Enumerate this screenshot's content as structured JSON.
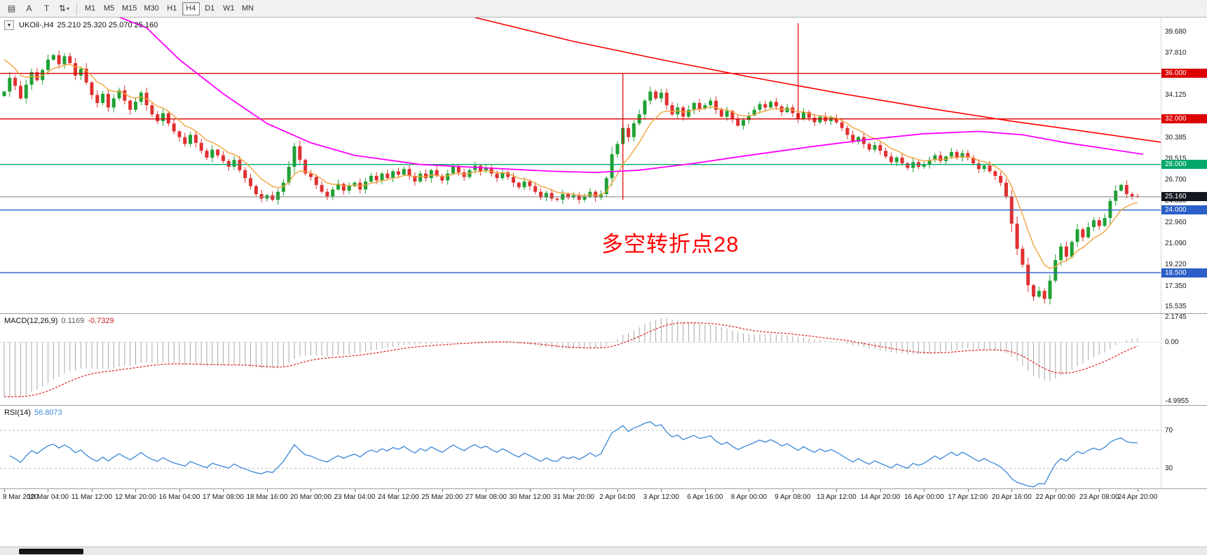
{
  "toolbar": {
    "left_icons": [
      {
        "name": "chart-window-icon",
        "glyph": "▤"
      },
      {
        "name": "letter-a-icon",
        "glyph": "A"
      },
      {
        "name": "text-tool-icon",
        "glyph": "T"
      },
      {
        "name": "indicators-dropdown-icon",
        "glyph": "⇅",
        "caret": "▾"
      }
    ],
    "timeframes": [
      {
        "label": "M1"
      },
      {
        "label": "M5"
      },
      {
        "label": "M15"
      },
      {
        "label": "M30"
      },
      {
        "label": "H1"
      },
      {
        "label": "H4",
        "active": true
      },
      {
        "label": "D1"
      },
      {
        "label": "W1"
      },
      {
        "label": "MN"
      }
    ]
  },
  "chart": {
    "header": {
      "dropdown_glyph": "▼",
      "symbol": "UKOil-,H4",
      "ohlc": "25.210 25.320 25.070 25.160"
    },
    "annotation": {
      "text": "多空转折点28",
      "color": "#ff0000"
    }
  },
  "indicators": {
    "macd": {
      "label": "MACD(12,26,9)",
      "value1": "0.1169",
      "value2": "-0.7329"
    },
    "rsi": {
      "label": "RSI(14)",
      "value": "56.8073"
    }
  },
  "chart_data": {
    "type": "candlestick",
    "symbol": "UKOil-",
    "timeframe": "H4",
    "ohlc_display": {
      "open": "25.210",
      "high": "25.320",
      "low": "25.070",
      "close": "25.160"
    },
    "price_range": [
      15.0,
      40.9
    ],
    "first_open": 34.0,
    "closes": [
      34.4,
      35.6,
      34.9,
      33.8,
      35.0,
      36.1,
      35.4,
      36.3,
      37.2,
      37.6,
      36.8,
      37.5,
      36.9,
      35.8,
      36.4,
      35.2,
      34.1,
      33.4,
      34.2,
      33.0,
      33.8,
      34.5,
      33.6,
      32.8,
      33.5,
      34.3,
      33.2,
      32.4,
      31.8,
      32.5,
      31.6,
      30.9,
      30.4,
      29.8,
      30.6,
      29.9,
      29.2,
      28.6,
      29.3,
      28.8,
      28.3,
      27.8,
      28.4,
      27.5,
      26.8,
      26.1,
      25.4,
      25.0,
      25.3,
      24.9,
      25.6,
      26.4,
      27.8,
      29.6,
      28.4,
      27.2,
      26.9,
      26.2,
      25.6,
      25.2,
      25.8,
      26.3,
      25.7,
      26.1,
      26.4,
      25.8,
      26.5,
      27.0,
      26.6,
      27.2,
      26.8,
      27.4,
      27.1,
      27.6,
      27.0,
      26.5,
      27.2,
      26.8,
      27.5,
      27.0,
      26.6,
      27.2,
      27.8,
      27.3,
      26.9,
      27.5,
      27.9,
      27.4,
      27.7,
      27.2,
      26.8,
      27.3,
      26.9,
      26.4,
      26.0,
      26.5,
      26.1,
      25.6,
      25.1,
      25.5,
      25.0,
      24.9,
      25.4,
      25.1,
      25.3,
      24.9,
      25.2,
      25.6,
      25.1,
      25.4,
      26.8,
      28.9,
      29.8,
      31.2,
      30.4,
      31.6,
      32.4,
      33.6,
      34.4,
      33.8,
      34.3,
      33.2,
      32.4,
      33.0,
      32.2,
      32.8,
      33.4,
      32.9,
      33.2,
      33.6,
      32.8,
      32.2,
      32.7,
      32.0,
      31.4,
      31.9,
      32.3,
      32.8,
      33.3,
      33.0,
      33.5,
      33.1,
      32.6,
      33.0,
      32.5,
      32.0,
      32.6,
      32.1,
      31.7,
      32.2,
      31.8,
      32.1,
      31.7,
      31.2,
      30.6,
      30.0,
      30.4,
      29.8,
      29.3,
      29.7,
      29.2,
      28.7,
      28.2,
      28.6,
      28.1,
      27.7,
      28.2,
      27.8,
      28.0,
      28.4,
      28.8,
      28.3,
      28.7,
      29.1,
      28.6,
      29.0,
      28.6,
      28.1,
      27.6,
      27.9,
      27.4,
      27.0,
      26.4,
      25.2,
      22.8,
      20.6,
      19.2,
      17.4,
      16.4,
      16.9,
      16.2,
      17.8,
      19.6,
      20.8,
      19.9,
      21.2,
      22.3,
      21.6,
      22.5,
      23.1,
      22.6,
      23.3,
      24.8,
      25.7,
      26.2,
      25.4,
      25.21,
      25.16
    ],
    "y_ticks": [
      39.68,
      37.81,
      34.125,
      30.385,
      28.515,
      26.7,
      24.85,
      22.96,
      21.09,
      19.22,
      17.35,
      15.535
    ],
    "hlines": [
      {
        "price": 36.0,
        "color": "#dd0000"
      },
      {
        "price": 32.0,
        "color": "#dd0000"
      },
      {
        "price": 28.0,
        "color": "#00a86b"
      },
      {
        "price": 24.0,
        "color": "#2b5fc7"
      },
      {
        "price": 18.5,
        "color": "#2b5fc7"
      }
    ],
    "bid": {
      "price": 25.16,
      "line_color": "#808080",
      "badge_color": "#14161f"
    },
    "vlines": [
      {
        "bar": 113,
        "from": 36.0,
        "to": 24.9,
        "color": "#dd0000"
      },
      {
        "bar": 145,
        "from": 40.4,
        "to": 32.0,
        "color": "#dd0000"
      }
    ],
    "ma_magenta": [
      [
        18,
        41.5
      ],
      [
        26,
        40.0
      ],
      [
        32,
        37.2
      ],
      [
        40,
        34.2
      ],
      [
        48,
        31.6
      ],
      [
        56,
        29.9
      ],
      [
        64,
        28.8
      ],
      [
        76,
        28.0
      ],
      [
        88,
        27.7
      ],
      [
        100,
        27.4
      ],
      [
        108,
        27.3
      ],
      [
        116,
        27.5
      ],
      [
        126,
        28.1
      ],
      [
        136,
        28.8
      ],
      [
        148,
        29.6
      ],
      [
        158,
        30.2
      ],
      [
        168,
        30.7
      ],
      [
        178,
        30.9
      ],
      [
        186,
        30.6
      ],
      [
        194,
        29.9
      ],
      [
        201,
        29.4
      ],
      [
        208,
        28.9
      ]
    ],
    "trendline_red": [
      [
        86,
        40.9
      ],
      [
        104,
        38.8
      ],
      [
        120,
        37.2
      ],
      [
        136,
        35.7
      ],
      [
        152,
        34.3
      ],
      [
        168,
        33.0
      ],
      [
        184,
        31.8
      ],
      [
        196,
        31.0
      ],
      [
        212,
        29.9
      ]
    ],
    "x_labels": [
      {
        "t": "8 Mar 2020",
        "bar": 0
      },
      {
        "t": "10 Mar 04:00",
        "bar": 8
      },
      {
        "t": "11 Mar 12:00",
        "bar": 16
      },
      {
        "t": "12 Mar 20:00",
        "bar": 24
      },
      {
        "t": "16 Mar 04:00",
        "bar": 32
      },
      {
        "t": "17 Mar 08:00",
        "bar": 40
      },
      {
        "t": "18 Mar 16:00",
        "bar": 48
      },
      {
        "t": "20 Mar 00:00",
        "bar": 56
      },
      {
        "t": "23 Mar 04:00",
        "bar": 64
      },
      {
        "t": "24 Mar 12:00",
        "bar": 72
      },
      {
        "t": "25 Mar 20:00",
        "bar": 80
      },
      {
        "t": "27 Mar 08:00",
        "bar": 88
      },
      {
        "t": "30 Mar 12:00",
        "bar": 96
      },
      {
        "t": "31 Mar 20:00",
        "bar": 104
      },
      {
        "t": "2 Apr 04:00",
        "bar": 112
      },
      {
        "t": "3 Apr 12:00",
        "bar": 120
      },
      {
        "t": "6 Apr 16:00",
        "bar": 128
      },
      {
        "t": "8 Apr 00:00",
        "bar": 136
      },
      {
        "t": "9 Apr 08:00",
        "bar": 144
      },
      {
        "t": "13 Apr 12:00",
        "bar": 152
      },
      {
        "t": "14 Apr 20:00",
        "bar": 160
      },
      {
        "t": "16 Apr 00:00",
        "bar": 168
      },
      {
        "t": "17 Apr 12:00",
        "bar": 176
      },
      {
        "t": "20 Apr 16:00",
        "bar": 184
      },
      {
        "t": "22 Apr 00:00",
        "bar": 192
      },
      {
        "t": "23 Apr 08:00",
        "bar": 200
      },
      {
        "t": "24 Apr 20:00",
        "bar": 207
      }
    ],
    "macd_panel": {
      "range": [
        -5.36,
        2.42
      ],
      "axis": [
        {
          "v": 2.1745,
          "t": "2.1745"
        },
        {
          "v": 0,
          "t": "0.00"
        },
        {
          "v": -4.9955,
          "t": "-4.9955"
        }
      ]
    },
    "rsi_panel": {
      "range": [
        8,
        96
      ],
      "levels": [
        {
          "v": 70,
          "t": "70"
        },
        {
          "v": 30,
          "t": "30"
        }
      ],
      "last": 56.8073
    },
    "colors": {
      "bull": "#1fa134",
      "bear": "#e03030",
      "ma_fast": "#f2a33c",
      "ma_mid": "#ff00ff",
      "trend": "#ff0000",
      "macd_hist": "#a8a8a8",
      "macd_signal": "#e02020",
      "rsi": "#3a87d8",
      "level_dash": "#bdbdbd"
    }
  }
}
